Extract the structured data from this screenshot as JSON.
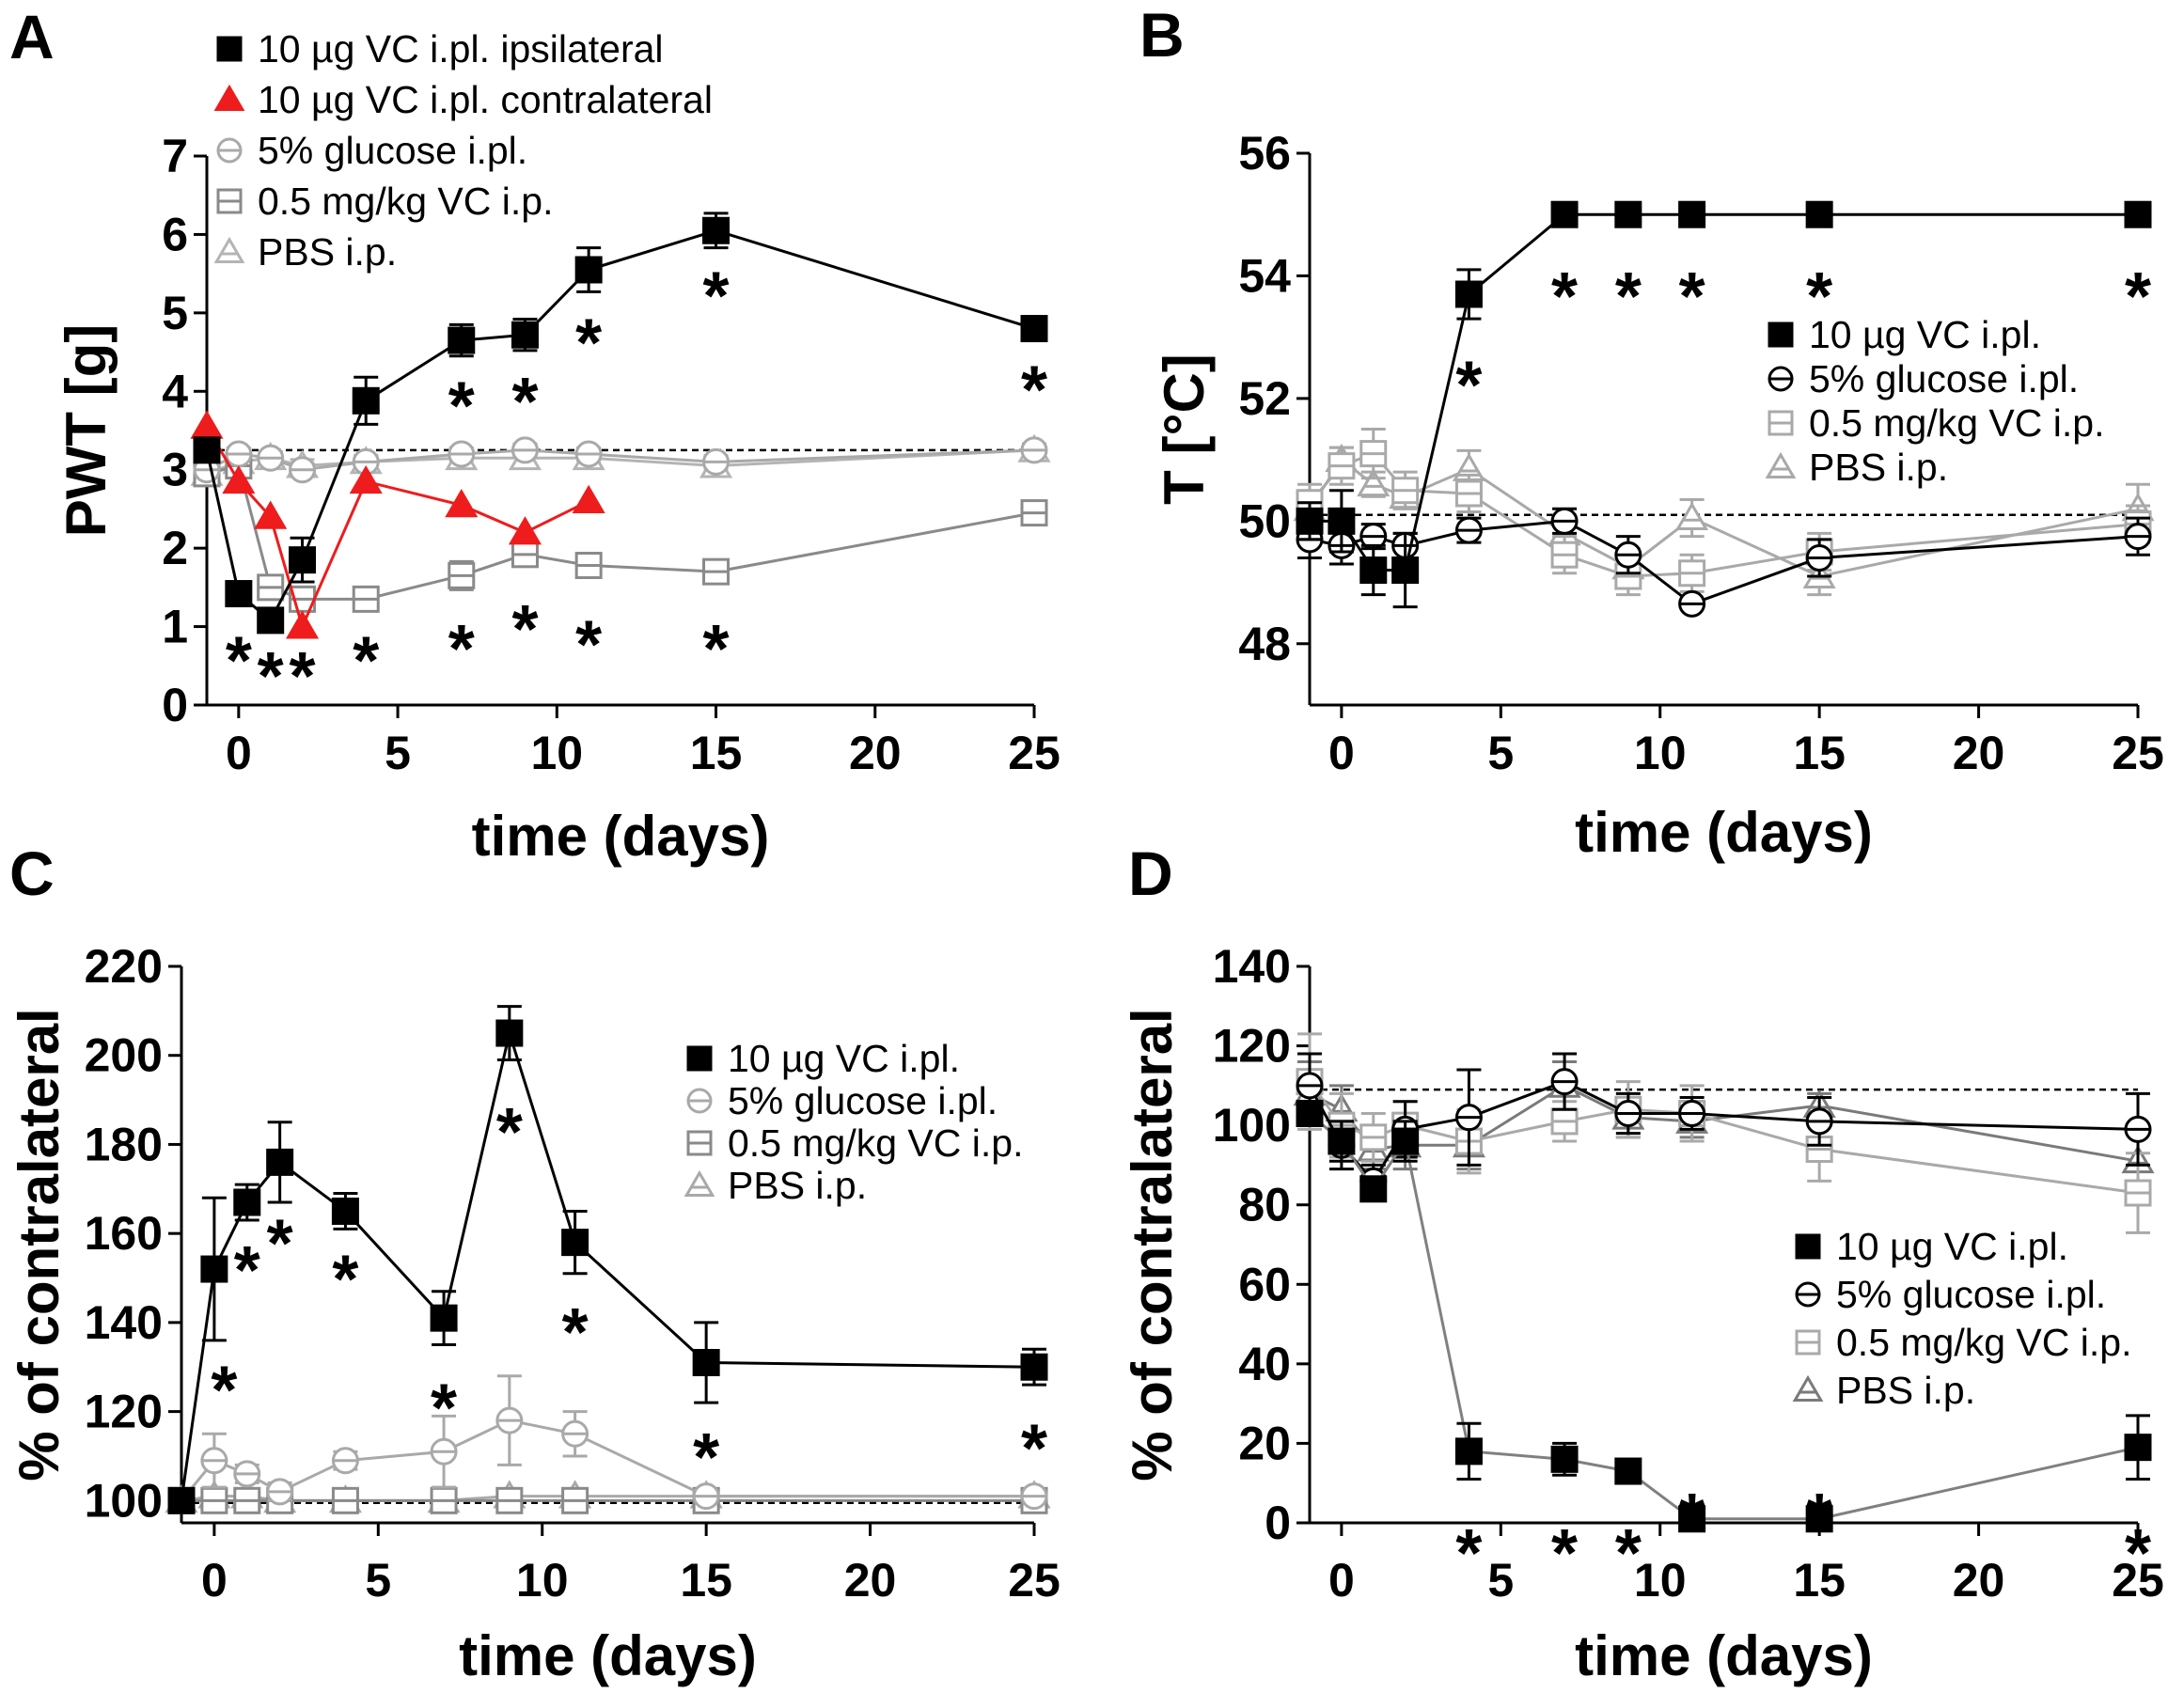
{
  "chart_data": [
    {
      "panel": "A",
      "type": "line",
      "xlabel": "time (days)",
      "ylabel": "PWT [g]",
      "xlim": [
        -1,
        25
      ],
      "ylim": [
        0,
        7
      ],
      "xticks": [
        0,
        5,
        10,
        15,
        20,
        25
      ],
      "yticks": [
        0,
        1,
        2,
        3,
        4,
        5,
        6,
        7
      ],
      "baseline": 3.25,
      "legend_position": "top-left",
      "series": [
        {
          "name": "10 µg VC i.pl. ipsilateral",
          "marker": "square-filled",
          "color": "#000000",
          "x": [
            -1,
            0,
            1,
            2,
            4,
            7,
            9,
            11,
            15,
            25
          ],
          "y": [
            3.25,
            1.42,
            1.08,
            1.85,
            3.88,
            4.65,
            4.72,
            5.55,
            6.05,
            4.8
          ],
          "err": [
            0.15,
            0.12,
            0.15,
            0.28,
            0.3,
            0.2,
            0.2,
            0.28,
            0.22,
            0.1
          ]
        },
        {
          "name": "10 µg VC i.pl. contralateral",
          "marker": "triangle-filled",
          "color": "#ee1c1c",
          "x": [
            -1,
            0,
            1,
            2,
            4,
            7,
            9,
            11
          ],
          "y": [
            3.55,
            2.85,
            2.4,
            1.0,
            2.85,
            2.55,
            2.2,
            2.6
          ],
          "err": [
            0,
            0,
            0,
            0,
            0,
            0,
            0,
            0
          ]
        },
        {
          "name": "5% glucose i.pl.",
          "marker": "circle-open-dash",
          "color": "#a9a9a9",
          "x": [
            -1,
            0,
            1,
            2,
            4,
            7,
            9,
            11,
            15,
            25
          ],
          "y": [
            3.0,
            3.2,
            3.15,
            3.0,
            3.1,
            3.2,
            3.25,
            3.2,
            3.1,
            3.25
          ],
          "err": [
            0.08,
            0.08,
            0.08,
            0.08,
            0.08,
            0.08,
            0.08,
            0.08,
            0.08,
            0.08
          ]
        },
        {
          "name": "0.5 mg/kg VC i.p.",
          "marker": "square-open-dash",
          "color": "#8a8a8a",
          "x": [
            -1,
            0,
            1,
            2,
            4,
            7,
            9,
            11,
            15,
            25
          ],
          "y": [
            2.95,
            3.05,
            1.5,
            1.35,
            1.35,
            1.65,
            1.92,
            1.78,
            1.7,
            2.45
          ],
          "err": [
            0.1,
            0.1,
            0.15,
            0.15,
            0.12,
            0.18,
            0.15,
            0.15,
            0.12,
            0.1
          ]
        },
        {
          "name": "PBS i.p.",
          "marker": "triangle-open-dash",
          "color": "#b4b4b4",
          "x": [
            -1,
            0,
            1,
            2,
            4,
            7,
            9,
            11,
            15,
            25
          ],
          "y": [
            2.95,
            3.1,
            3.15,
            3.05,
            3.1,
            3.15,
            3.15,
            3.15,
            3.05,
            3.25
          ],
          "err": [
            0.08,
            0.08,
            0.08,
            0.08,
            0.08,
            0.08,
            0.08,
            0.08,
            0.08,
            0.08
          ]
        }
      ],
      "annotations": [
        {
          "text": "*",
          "x": 0,
          "y": 0.75
        },
        {
          "text": "*",
          "x": 1,
          "y": 0.55
        },
        {
          "text": "*",
          "x": 2,
          "y": 0.55
        },
        {
          "text": "*",
          "x": 4,
          "y": 0.75
        },
        {
          "text": "*",
          "x": 7,
          "y": 0.9
        },
        {
          "text": "*",
          "x": 9,
          "y": 1.15
        },
        {
          "text": "*",
          "x": 11,
          "y": 0.95
        },
        {
          "text": "*",
          "x": 15,
          "y": 0.9
        },
        {
          "text": "*",
          "x": 7,
          "y": 4.0
        },
        {
          "text": "*",
          "x": 9,
          "y": 4.05
        },
        {
          "text": "*",
          "x": 11,
          "y": 4.8
        },
        {
          "text": "*",
          "x": 15,
          "y": 5.4
        },
        {
          "text": "*",
          "x": 25,
          "y": 4.2
        }
      ]
    },
    {
      "panel": "B",
      "type": "line",
      "xlabel": "time (days)",
      "ylabel": "T [°C]",
      "xlim": [
        -1,
        25
      ],
      "ylim": [
        47,
        56
      ],
      "xticks": [
        0,
        5,
        10,
        15,
        20,
        25
      ],
      "yticks": [
        48,
        50,
        52,
        54,
        56
      ],
      "baseline": 50.1,
      "legend_position": "center-right",
      "series": [
        {
          "name": "10 µg VC i.pl.",
          "marker": "square-filled",
          "color": "#000000",
          "x": [
            -1,
            0,
            1,
            2,
            4,
            7,
            9,
            11,
            15,
            25
          ],
          "y": [
            50.0,
            50.0,
            49.2,
            49.2,
            53.7,
            55.0,
            55.0,
            55.0,
            55.0,
            55.0
          ],
          "err": [
            0.3,
            0.5,
            0.4,
            0.6,
            0.4,
            0,
            0,
            0,
            0,
            0
          ]
        },
        {
          "name": "5% glucose i.pl.",
          "marker": "circle-open-dash",
          "color": "#000000",
          "x": [
            -1,
            0,
            1,
            2,
            4,
            7,
            9,
            11,
            15,
            25
          ],
          "y": [
            49.7,
            49.6,
            49.75,
            49.6,
            49.85,
            50.0,
            49.45,
            48.65,
            49.4,
            49.75
          ],
          "err": [
            0.3,
            0.3,
            0.2,
            0.2,
            0.2,
            0.2,
            0.3,
            0,
            0.3,
            0.3
          ]
        },
        {
          "name": "0.5 mg/kg VC i.p.",
          "marker": "square-open-dash",
          "color": "#a9a9a9",
          "x": [
            -1,
            0,
            1,
            2,
            4,
            7,
            9,
            11,
            15,
            25
          ],
          "y": [
            50.3,
            50.9,
            51.1,
            50.5,
            50.45,
            49.45,
            49.1,
            49.15,
            49.5,
            49.95
          ],
          "err": [
            0.3,
            0.3,
            0.4,
            0.3,
            0.3,
            0.3,
            0.3,
            0.3,
            0.3,
            0.3
          ]
        },
        {
          "name": "PBS i.p.",
          "marker": "triangle-open-dash",
          "color": "#a9a9a9",
          "x": [
            -1,
            0,
            1,
            2,
            4,
            7,
            9,
            11,
            15,
            25
          ],
          "y": [
            50.2,
            51.0,
            50.6,
            50.4,
            50.85,
            49.8,
            49.25,
            50.05,
            49.1,
            50.2
          ],
          "err": [
            0.2,
            0.2,
            0.2,
            0.2,
            0.3,
            0.3,
            0.3,
            0.3,
            0.3,
            0.4
          ]
        }
      ],
      "annotations": [
        {
          "text": "*",
          "x": 4,
          "y": 52.45
        },
        {
          "text": "*",
          "x": 7,
          "y": 53.9
        },
        {
          "text": "*",
          "x": 9,
          "y": 53.9
        },
        {
          "text": "*",
          "x": 11,
          "y": 53.9
        },
        {
          "text": "*",
          "x": 15,
          "y": 53.9
        },
        {
          "text": "*",
          "x": 25,
          "y": 53.9
        }
      ]
    },
    {
      "panel": "C",
      "type": "line",
      "xlabel": "time (days)",
      "ylabel": "% of contralateral",
      "xlim": [
        -1,
        25
      ],
      "ylim": [
        95,
        220
      ],
      "xticks": [
        0,
        5,
        10,
        15,
        20,
        25
      ],
      "yticks": [
        100,
        120,
        140,
        160,
        180,
        200,
        220
      ],
      "baseline": 99.5,
      "legend_position": "center-right",
      "series": [
        {
          "name": "10 µg VC i.pl.",
          "marker": "square-filled",
          "color": "#000000",
          "x": [
            -1,
            0,
            1,
            2,
            4,
            7,
            9,
            11,
            15,
            25
          ],
          "y": [
            100,
            152,
            167,
            176,
            165,
            141,
            205,
            158,
            131,
            130
          ],
          "err": [
            0,
            16,
            4,
            9,
            4,
            6,
            6,
            7,
            9,
            4
          ]
        },
        {
          "name": "5% glucose i.pl.",
          "marker": "circle-open-dash",
          "color": "#a9a9a9",
          "x": [
            -1,
            0,
            1,
            2,
            4,
            7,
            9,
            11,
            15,
            25
          ],
          "y": [
            100,
            109,
            106,
            102,
            109,
            111,
            118,
            115,
            101,
            101
          ],
          "err": [
            0,
            6,
            2,
            2,
            2,
            8,
            10,
            5,
            1,
            1
          ]
        },
        {
          "name": "0.5 mg/kg VC i.p.",
          "marker": "square-open-dash",
          "color": "#8a8a8a",
          "x": [
            -1,
            0,
            1,
            2,
            4,
            7,
            9,
            11,
            15,
            25
          ],
          "y": [
            100,
            100,
            100,
            100,
            100,
            100,
            100,
            100,
            100,
            100
          ],
          "err": [
            0,
            0,
            0,
            0,
            0,
            0,
            0,
            0,
            0,
            0
          ]
        },
        {
          "name": "PBS i.p.",
          "marker": "triangle-open-dash",
          "color": "#a9a9a9",
          "x": [
            -1,
            0,
            1,
            2,
            4,
            7,
            9,
            11,
            15,
            25
          ],
          "y": [
            100,
            101,
            101,
            100,
            100,
            100,
            101,
            101,
            101,
            101
          ],
          "err": [
            0,
            0,
            0,
            0,
            0,
            0,
            0,
            0,
            0,
            0
          ]
        }
      ],
      "annotations": [
        {
          "text": "*",
          "x": 0.3,
          "y": 128
        },
        {
          "text": "*",
          "x": 1,
          "y": 155
        },
        {
          "text": "*",
          "x": 2,
          "y": 161
        },
        {
          "text": "*",
          "x": 4,
          "y": 153
        },
        {
          "text": "*",
          "x": 7,
          "y": 124
        },
        {
          "text": "*",
          "x": 9,
          "y": 186
        },
        {
          "text": "*",
          "x": 11,
          "y": 141
        },
        {
          "text": "*",
          "x": 15,
          "y": 113
        },
        {
          "text": "*",
          "x": 25,
          "y": 115
        }
      ]
    },
    {
      "panel": "D",
      "type": "line",
      "xlabel": "time (days)",
      "ylabel": "% of contralateral",
      "xlim": [
        -1,
        25
      ],
      "ylim": [
        0,
        140
      ],
      "xticks": [
        0,
        5,
        10,
        15,
        20,
        25
      ],
      "yticks": [
        0,
        20,
        40,
        60,
        80,
        100,
        120,
        140
      ],
      "baseline": 109,
      "legend_position": "bottom-right",
      "series": [
        {
          "name": "10 µg VC i.pl.",
          "marker": "square-filled",
          "color": "#000000",
          "line_color": "#808080",
          "x": [
            -1,
            0,
            1,
            2,
            4,
            7,
            9,
            11,
            15,
            25
          ],
          "y": [
            103,
            96,
            84,
            96,
            18,
            16,
            13,
            1,
            1,
            19
          ],
          "err": [
            3,
            5,
            3,
            5,
            7,
            4,
            2,
            1,
            1,
            8
          ]
        },
        {
          "name": "5% glucose i.pl.",
          "marker": "circle-open-dash",
          "color": "#000000",
          "x": [
            -1,
            0,
            1,
            2,
            4,
            7,
            9,
            11,
            15,
            25
          ],
          "y": [
            110,
            95,
            86,
            99,
            102,
            111,
            103,
            103,
            101,
            99
          ],
          "err": [
            8,
            6,
            4,
            7,
            12,
            7,
            5,
            4,
            6,
            9
          ]
        },
        {
          "name": "0.5 mg/kg VC i.p.",
          "marker": "square-open-dash",
          "color": "#a9a9a9",
          "x": [
            -1,
            0,
            1,
            2,
            4,
            7,
            9,
            11,
            15,
            25
          ],
          "y": [
            111,
            100,
            97,
            100,
            96,
            101,
            104,
            103,
            94,
            83
          ],
          "err": [
            12,
            8,
            6,
            6,
            8,
            5,
            7,
            7,
            8,
            10
          ]
        },
        {
          "name": "PBS i.p.",
          "marker": "triangle-open-dash",
          "color": "#7a7a7a",
          "x": [
            -1,
            0,
            1,
            2,
            4,
            7,
            9,
            11,
            15,
            25
          ],
          "y": [
            108,
            104,
            94,
            95,
            95,
            110,
            102,
            101,
            105,
            91
          ],
          "err": [
            8,
            6,
            5,
            6,
            6,
            6,
            5,
            4,
            3,
            8
          ]
        }
      ],
      "annotations": [
        {
          "text": "*",
          "x": 4,
          "y": -4
        },
        {
          "text": "*",
          "x": 7,
          "y": -4
        },
        {
          "text": "*",
          "x": 9,
          "y": -4
        },
        {
          "text": "*",
          "x": 11,
          "y": 5
        },
        {
          "text": "*",
          "x": 15,
          "y": 5
        },
        {
          "text": "*",
          "x": 25,
          "y": -4
        }
      ]
    }
  ]
}
